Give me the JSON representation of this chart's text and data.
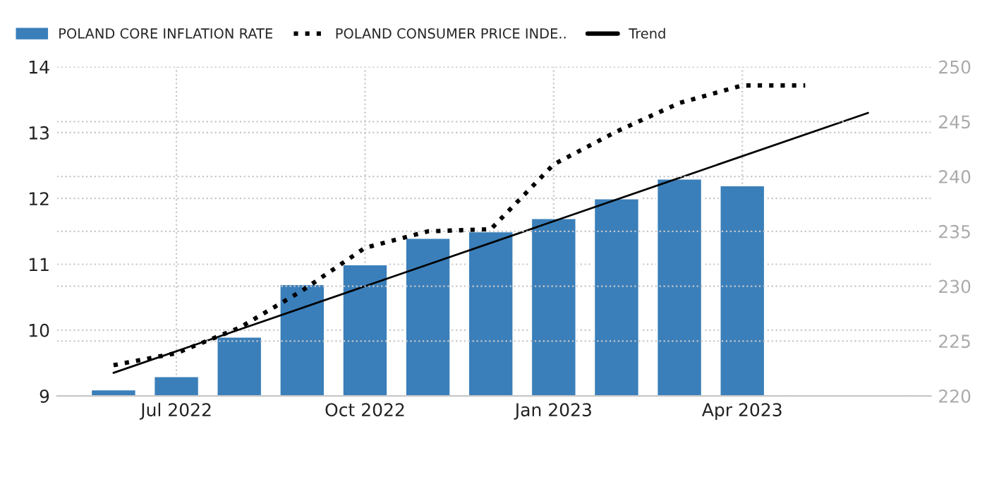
{
  "chart_data": {
    "type": "bar",
    "categories": [
      null,
      "Jul 2022",
      null,
      null,
      "Oct 2022",
      null,
      null,
      "Jan 2023",
      null,
      null,
      "Apr 2023",
      null,
      null
    ],
    "series": [
      {
        "name": "POLAND CORE INFLATION RATE",
        "color": "#3a7fba",
        "values": [
          9.1,
          9.3,
          9.9,
          10.7,
          11.0,
          11.4,
          11.5,
          11.7,
          12.0,
          12.3,
          12.2,
          null,
          null
        ]
      },
      {
        "name": "POLAND CONSUMER PRICE INDE..",
        "type": "line",
        "axis": "y2",
        "color": "#000000",
        "line_style": "dotted",
        "values": [
          222.8,
          223.9,
          226.2,
          229.6,
          233.5,
          235.0,
          235.2,
          241.1,
          244.1,
          246.7,
          248.3,
          248.3,
          null
        ]
      },
      {
        "name": "Trend",
        "type": "line",
        "color": "#000000",
        "line_style": "solid",
        "values": [
          9.35,
          null,
          null,
          null,
          null,
          null,
          null,
          null,
          null,
          null,
          null,
          null,
          13.3
        ]
      }
    ],
    "ylim": [
      9,
      14
    ],
    "yticks": [
      9,
      10,
      11,
      12,
      13,
      14
    ],
    "y2lim": [
      220,
      250
    ],
    "y2ticks": [
      220,
      225,
      230,
      235,
      240,
      245,
      250
    ],
    "grid": true,
    "legend": "top left"
  }
}
